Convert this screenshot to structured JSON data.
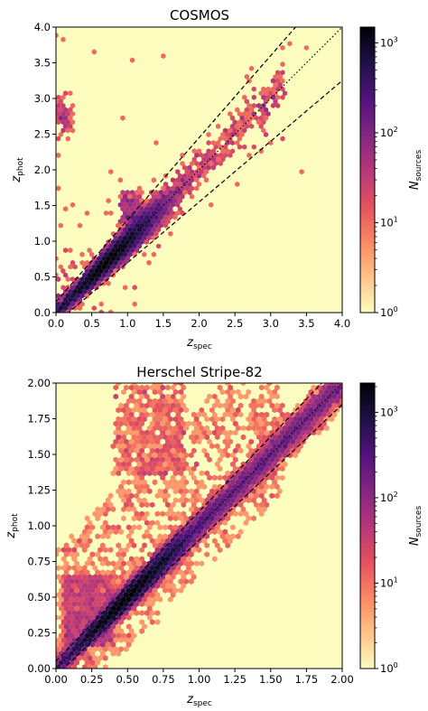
{
  "colormap": {
    "name": "magma_r",
    "stops": [
      "#fcfdbf",
      "#fec287",
      "#fb8761",
      "#e3505f",
      "#b5367a",
      "#822681",
      "#51127c",
      "#1d1147",
      "#000004"
    ]
  },
  "chart_data": [
    {
      "type": "heatmap",
      "subtype": "hexbin",
      "title": "COSMOS",
      "xlabel_main": "z",
      "xlabel_sub": "spec",
      "ylabel_main": "z",
      "ylabel_sub": "phot",
      "xlim": [
        0.0,
        4.0
      ],
      "ylim": [
        0.0,
        4.0
      ],
      "xticks": [
        0.0,
        0.5,
        1.0,
        1.5,
        2.0,
        2.5,
        3.0,
        3.5,
        4.0
      ],
      "xtick_labels": [
        "0.0",
        "0.5",
        "1.0",
        "1.5",
        "2.0",
        "2.5",
        "3.0",
        "3.5",
        "4.0"
      ],
      "yticks": [
        0.0,
        0.5,
        1.0,
        1.5,
        2.0,
        2.5,
        3.0,
        3.5,
        4.0
      ],
      "ytick_labels": [
        "0.0",
        "0.5",
        "1.0",
        "1.5",
        "2.0",
        "2.5",
        "3.0",
        "3.5",
        "4.0"
      ],
      "colorbar": {
        "label_main": "N",
        "label_sub": "sources",
        "scale": "log",
        "range": [
          1,
          1500
        ],
        "ticks": [
          1,
          10,
          100,
          1000
        ],
        "tick_base": "10",
        "tick_exponents": [
          "0",
          "1",
          "2",
          "3"
        ]
      },
      "lines": [
        {
          "style": "dotted",
          "relation": "z_phot = z_spec"
        },
        {
          "style": "dashed",
          "relation": "z_phot = z_spec + 0.15(1 + z_spec)"
        },
        {
          "style": "dashed",
          "relation": "z_phot = z_spec - 0.15(1 + z_spec)"
        }
      ],
      "hexbin": {
        "gridsize": 60,
        "seed": 7,
        "n_main": 9000,
        "n_scatter": 800
      }
    },
    {
      "type": "heatmap",
      "subtype": "hexbin",
      "title": "Herschel Stripe-82",
      "xlabel_main": "z",
      "xlabel_sub": "spec",
      "ylabel_main": "z",
      "ylabel_sub": "phot",
      "xlim": [
        0.0,
        2.0
      ],
      "ylim": [
        0.0,
        2.0
      ],
      "xticks": [
        0.0,
        0.25,
        0.5,
        0.75,
        1.0,
        1.25,
        1.5,
        1.75,
        2.0
      ],
      "xtick_labels": [
        "0.00",
        "0.25",
        "0.50",
        "0.75",
        "1.00",
        "1.25",
        "1.50",
        "1.75",
        "2.00"
      ],
      "yticks": [
        0.0,
        0.25,
        0.5,
        0.75,
        1.0,
        1.25,
        1.5,
        1.75,
        2.0
      ],
      "ytick_labels": [
        "0.00",
        "0.25",
        "0.50",
        "0.75",
        "1.00",
        "1.25",
        "1.50",
        "1.75",
        "2.00"
      ],
      "colorbar": {
        "label_main": "N",
        "label_sub": "sources",
        "scale": "log",
        "range": [
          1,
          2200
        ],
        "ticks": [
          1,
          10,
          100,
          1000
        ],
        "tick_base": "10",
        "tick_exponents": [
          "0",
          "1",
          "2",
          "3"
        ]
      },
      "lines": [
        {
          "style": "dotted",
          "relation": "z_phot = z_spec"
        },
        {
          "style": "dashed",
          "relation": "z_phot = z_spec + 0.05(1 + z_spec)"
        },
        {
          "style": "dashed",
          "relation": "z_phot = z_spec - 0.05(1 + z_spec)"
        }
      ],
      "hexbin": {
        "gridsize": 55,
        "seed": 11,
        "n_main": 30000,
        "n_scatter": 3000
      }
    }
  ]
}
